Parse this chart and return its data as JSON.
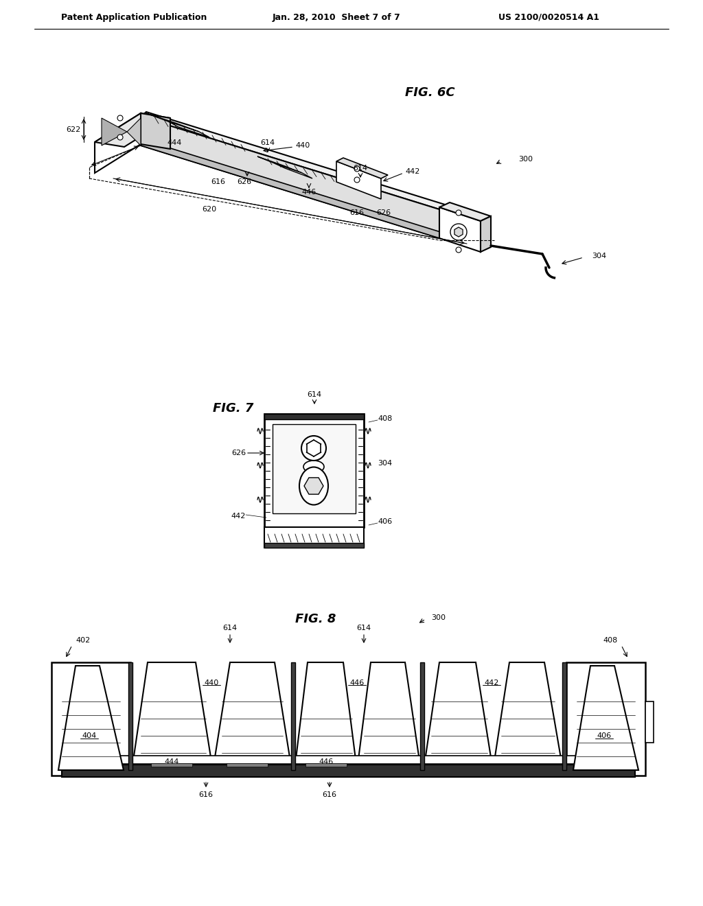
{
  "header_left": "Patent Application Publication",
  "header_mid": "Jan. 28, 2010  Sheet 7 of 7",
  "header_right": "US 2100/0020514 A1",
  "fig6c_label": "FIG. 6C",
  "fig7_label": "FIG. 7",
  "fig8_label": "FIG. 8",
  "bg_color": "#ffffff",
  "line_color": "#000000"
}
